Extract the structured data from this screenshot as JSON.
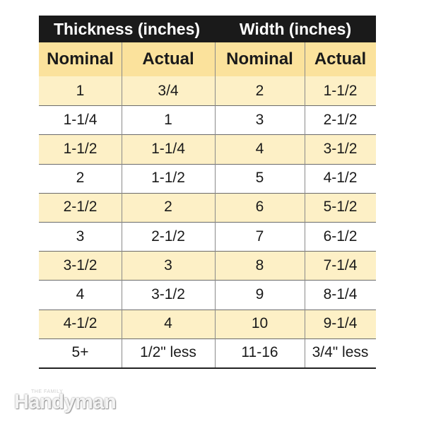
{
  "table": {
    "group_headers": [
      "Thickness (inches)",
      "Width (inches)"
    ],
    "columns": [
      "Nominal",
      "Actual",
      "Nominal",
      "Actual"
    ],
    "rows": [
      [
        "1",
        "3/4",
        "2",
        "1-1/2"
      ],
      [
        "1-1/4",
        "1",
        "3",
        "2-1/2"
      ],
      [
        "1-1/2",
        "1-1/4",
        "4",
        "3-1/2"
      ],
      [
        "2",
        "1-1/2",
        "5",
        "4-1/2"
      ],
      [
        "2-1/2",
        "2",
        "6",
        "5-1/2"
      ],
      [
        "3",
        "2-1/2",
        "7",
        "6-1/2"
      ],
      [
        "3-1/2",
        "3",
        "8",
        "7-1/4"
      ],
      [
        "4",
        "3-1/2",
        "9",
        "8-1/4"
      ],
      [
        "4-1/2",
        "4",
        "10",
        "9-1/4"
      ],
      [
        "5+",
        "1/2\" less",
        "11-16",
        "3/4\" less"
      ]
    ]
  },
  "logo": {
    "small": "THE FAMILY",
    "main": "Handyman"
  }
}
